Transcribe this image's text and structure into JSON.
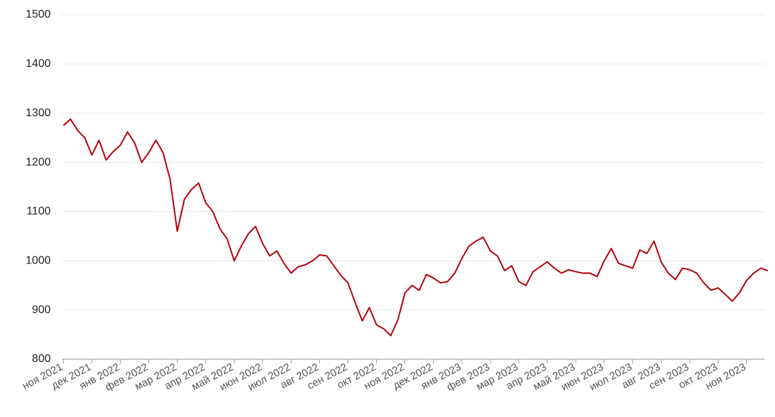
{
  "chart_data": {
    "type": "line",
    "categories": [
      "ноя 2021",
      null,
      null,
      null,
      "дек 2021",
      null,
      null,
      null,
      "янв 2022",
      null,
      null,
      null,
      "фев 2022",
      null,
      null,
      null,
      "мар 2022",
      null,
      null,
      null,
      "апр 2022",
      null,
      null,
      null,
      "май 2022",
      null,
      null,
      null,
      "июн 2022",
      null,
      null,
      null,
      "июл 2022",
      null,
      null,
      null,
      "авг 2022",
      null,
      null,
      null,
      "сен 2022",
      null,
      null,
      null,
      "окт 2022",
      null,
      null,
      null,
      "ноя 2022",
      null,
      null,
      null,
      "дек 2022",
      null,
      null,
      null,
      "янв 2023",
      null,
      null,
      null,
      "фев 2023",
      null,
      null,
      null,
      "мар 2023",
      null,
      null,
      null,
      "апр 2023",
      null,
      null,
      null,
      "май 2023",
      null,
      null,
      null,
      "июн 2023",
      null,
      null,
      null,
      "июл 2023",
      null,
      null,
      null,
      "авг 2023",
      null,
      null,
      null,
      "сен 2023",
      null,
      null,
      null,
      "окт 2023",
      null,
      null,
      null,
      "ноя 2023",
      null,
      null,
      null
    ],
    "series": [
      {
        "color": "#b5000a",
        "values": [
          1275,
          1288,
          1265,
          1250,
          1215,
          1245,
          1205,
          1222,
          1235,
          1262,
          1240,
          1200,
          1220,
          1245,
          1220,
          1165,
          1060,
          1125,
          1145,
          1158,
          1118,
          1100,
          1065,
          1045,
          1000,
          1030,
          1055,
          1070,
          1035,
          1010,
          1020,
          995,
          975,
          988,
          992,
          1000,
          1012,
          1010,
          990,
          970,
          955,
          915,
          878,
          905,
          870,
          862,
          848,
          880,
          935,
          950,
          940,
          972,
          965,
          955,
          958,
          975,
          1005,
          1030,
          1040,
          1048,
          1020,
          1010,
          980,
          990,
          958,
          950,
          978,
          988,
          998,
          985,
          975,
          982,
          978,
          975,
          975,
          968,
          1000,
          1025,
          995,
          990,
          985,
          1022,
          1015,
          1040,
          998,
          975,
          962,
          985,
          982,
          975,
          955,
          940,
          945,
          932,
          918,
          935,
          960,
          975,
          985,
          980
        ]
      }
    ],
    "ylim": [
      800,
      1500
    ],
    "yticks": [
      800,
      900,
      1000,
      1100,
      1200,
      1300,
      1400,
      1500
    ],
    "grid": true
  }
}
